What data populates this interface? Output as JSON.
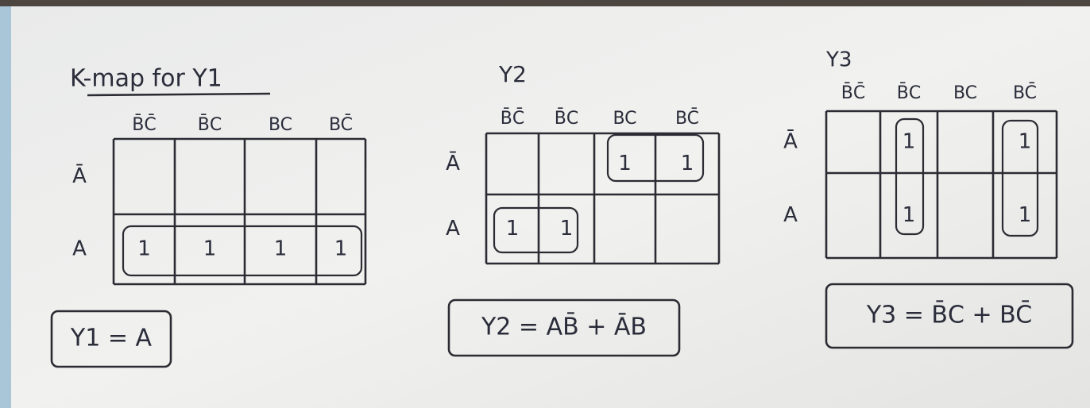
{
  "maps": [
    {
      "title": "K-map for Y1",
      "columns": [
        "B̄C̄",
        "B̄C",
        "BC",
        "BC̄"
      ],
      "rows": [
        "Ā",
        "A"
      ],
      "cells": [
        [
          null,
          null,
          null,
          null
        ],
        [
          "1",
          "1",
          "1",
          "1"
        ]
      ],
      "equation": "Y1 = A"
    },
    {
      "title": "Y2",
      "columns": [
        "B̄C̄",
        "B̄C",
        "BC",
        "BC̄"
      ],
      "rows": [
        "Ā",
        "A"
      ],
      "cells": [
        [
          null,
          null,
          "1",
          "1"
        ],
        [
          "1",
          "1",
          null,
          null
        ]
      ],
      "equation": "Y2 = AB̄ + ĀB"
    },
    {
      "title": "Y3",
      "columns": [
        "B̄C̄",
        "B̄C",
        "BC",
        "BC̄"
      ],
      "rows": [
        "Ā",
        "A"
      ],
      "cells": [
        [
          null,
          "1",
          null,
          "1"
        ],
        [
          null,
          "1",
          null,
          "1"
        ]
      ],
      "equation": "Y3 = B̄C + BC̄"
    }
  ]
}
